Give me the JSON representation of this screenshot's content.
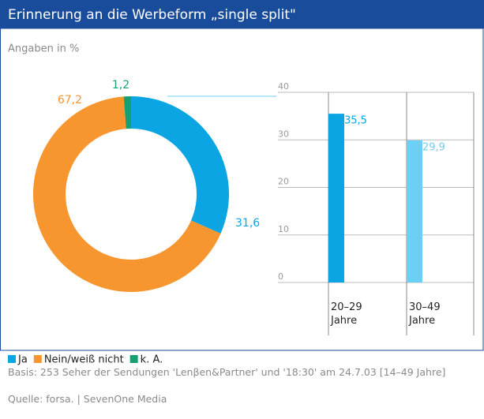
{
  "header": {
    "title": "Erinnerung an die Werbeform „single split\"",
    "subtitle": "Angaben in %"
  },
  "chart_data": [
    {
      "type": "donut",
      "categories": [
        "Ja",
        "Nein/weiß nicht",
        "k. A."
      ],
      "values": [
        31.6,
        67.2,
        1.2
      ],
      "value_labels": [
        "31,6",
        "67,2",
        "1,2"
      ],
      "colors": [
        "#0aa5e2",
        "#f7952f",
        "#16a072"
      ]
    },
    {
      "type": "bar",
      "categories": [
        "20–29 Jahre",
        "30–49 Jahre"
      ],
      "values": [
        35.5,
        29.9
      ],
      "value_labels": [
        "35,5",
        "29,9"
      ],
      "colors": [
        "#0aa5e2",
        "#6ccff5"
      ],
      "ylim": [
        0,
        40
      ],
      "yticks": [
        0,
        10,
        20,
        30,
        40
      ],
      "grid": true
    }
  ],
  "footer": {
    "basis": "Basis: 253 Seher der Sendungen 'Lenβen&Partner' und '18:30' am 24.7.03 [14–49 Jahre]",
    "source": "Quelle: forsa. | SevenOne Media"
  }
}
